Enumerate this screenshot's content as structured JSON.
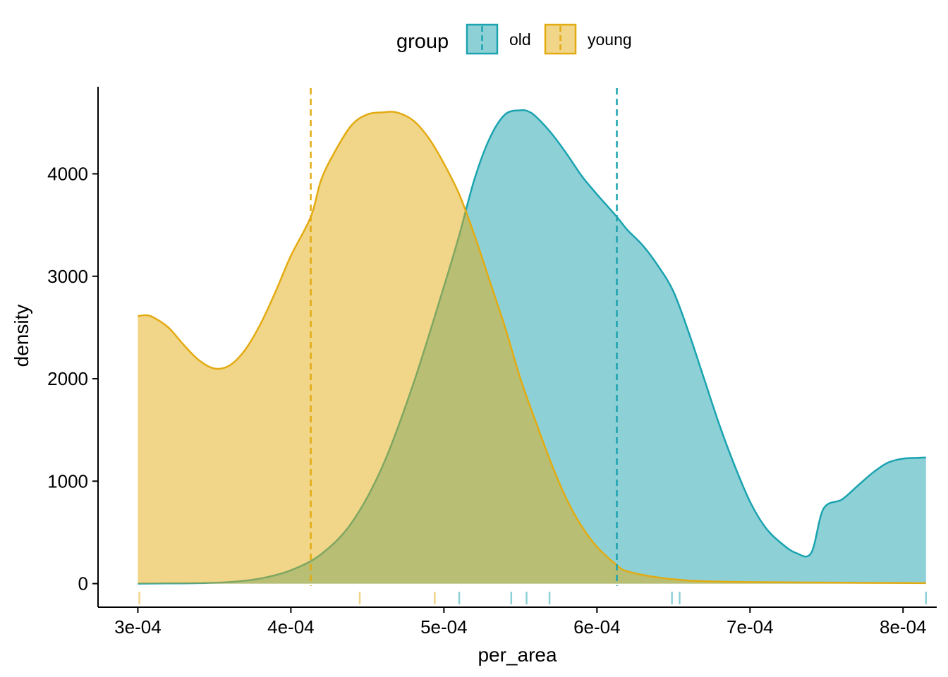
{
  "chart_data": {
    "type": "area",
    "subtype": "density",
    "title": "",
    "xlabel": "per_area",
    "ylabel": "density",
    "xlim": [
      0.000274,
      0.000822
    ],
    "ylim": [
      -230,
      4850
    ],
    "x_ticks": [
      0.0003,
      0.0004,
      0.0005,
      0.0006,
      0.0007,
      0.0008
    ],
    "x_tick_labels": [
      "3e-04",
      "4e-04",
      "5e-04",
      "6e-04",
      "7e-04",
      "8e-04"
    ],
    "y_ticks": [
      0,
      1000,
      2000,
      3000,
      4000
    ],
    "y_tick_labels": [
      "0",
      "1000",
      "2000",
      "3000",
      "4000"
    ],
    "grid": false,
    "legend": {
      "title": "group",
      "position": "top",
      "entries": [
        "old",
        "young"
      ]
    },
    "colors": {
      "old": "#1ba3b0",
      "young": "#e3ab12",
      "old_fill": "#8acfd6",
      "young_fill": "#f0d483",
      "overlap_fill": "#b3bf72"
    },
    "series": [
      {
        "name": "old",
        "mean_line": 0.000613,
        "rug": [
          0.00051,
          0.000544,
          0.000554,
          0.000569,
          0.000649,
          0.000654,
          0.000815
        ],
        "x": [
          0.0003,
          0.00032,
          0.00034,
          0.00036,
          0.00038,
          0.0004,
          0.00042,
          0.00044,
          0.00046,
          0.00048,
          0.0005,
          0.00051,
          0.00052,
          0.00053,
          0.00054,
          0.00055,
          0.000555,
          0.00056,
          0.00057,
          0.00058,
          0.00059,
          0.0006,
          0.000613,
          0.00062,
          0.00063,
          0.00064,
          0.00065,
          0.00066,
          0.00067,
          0.00068,
          0.00069,
          0.0007,
          0.00071,
          0.00072,
          0.00073,
          0.00074,
          0.000748,
          0.00076,
          0.00077,
          0.00078,
          0.00079,
          0.0008,
          0.00081,
          0.000815
        ],
        "y": [
          0,
          2,
          5,
          15,
          50,
          130,
          290,
          600,
          1150,
          1950,
          2900,
          3400,
          3950,
          4350,
          4580,
          4620,
          4610,
          4560,
          4400,
          4200,
          3980,
          3800,
          3580,
          3450,
          3300,
          3100,
          2850,
          2450,
          2000,
          1550,
          1150,
          800,
          550,
          400,
          300,
          300,
          730,
          820,
          950,
          1080,
          1180,
          1220,
          1228,
          1230
        ]
      },
      {
        "name": "young",
        "mean_line": 0.000413,
        "rug": [
          0.000301,
          0.000445,
          0.000494
        ],
        "x": [
          0.0003,
          0.000305,
          0.00031,
          0.00032,
          0.00033,
          0.00034,
          0.00035,
          0.00036,
          0.00037,
          0.00038,
          0.00039,
          0.0004,
          0.000413,
          0.00042,
          0.00043,
          0.00044,
          0.00045,
          0.00046,
          0.000469,
          0.00048,
          0.00049,
          0.0005,
          0.00051,
          0.00052,
          0.00053,
          0.00054,
          0.00055,
          0.00056,
          0.00057,
          0.00058,
          0.00059,
          0.0006,
          0.000613,
          0.00062,
          0.00064,
          0.00066,
          0.00068,
          0.0007,
          0.00075,
          0.000815
        ],
        "y": [
          2610,
          2620,
          2600,
          2500,
          2330,
          2180,
          2100,
          2130,
          2280,
          2530,
          2850,
          3200,
          3580,
          3950,
          4250,
          4480,
          4580,
          4600,
          4600,
          4520,
          4350,
          4100,
          3800,
          3400,
          2950,
          2500,
          2000,
          1580,
          1180,
          830,
          560,
          360,
          180,
          120,
          60,
          30,
          20,
          15,
          10,
          5
        ]
      }
    ]
  }
}
